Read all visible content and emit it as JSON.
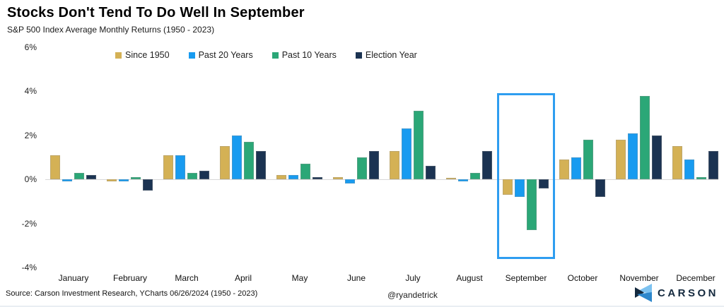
{
  "header": {
    "title": "Stocks Don't Tend To Do Well In September",
    "subtitle": "S&P 500 Index Average Monthly Returns (1950 - 2023)"
  },
  "chart_data": {
    "type": "bar",
    "categories": [
      "January",
      "February",
      "March",
      "April",
      "May",
      "June",
      "July",
      "August",
      "September",
      "October",
      "November",
      "December"
    ],
    "series": [
      {
        "name": "Since 1950",
        "color": "#d4b155",
        "values": [
          1.1,
          -0.1,
          1.1,
          1.5,
          0.2,
          0.1,
          1.3,
          0.0,
          -0.7,
          0.9,
          1.8,
          1.5
        ]
      },
      {
        "name": "Past 20 Years",
        "color": "#189bf0",
        "values": [
          -0.1,
          -0.1,
          1.1,
          2.0,
          0.2,
          -0.2,
          2.3,
          -0.1,
          -0.8,
          1.0,
          2.1,
          0.9
        ]
      },
      {
        "name": "Past 10 Years",
        "color": "#2ba777",
        "values": [
          0.3,
          0.1,
          0.3,
          1.7,
          0.7,
          1.0,
          3.1,
          0.3,
          -2.3,
          1.8,
          3.8,
          0.1
        ]
      },
      {
        "name": "Election Year",
        "color": "#1b3352",
        "values": [
          0.2,
          -0.5,
          0.4,
          1.3,
          0.1,
          1.3,
          0.6,
          1.3,
          -0.4,
          -0.8,
          2.0,
          1.3
        ]
      }
    ],
    "title": "Stocks Don't Tend To Do Well In September",
    "xlabel": "",
    "ylabel": "",
    "ylim": [
      -4,
      6
    ],
    "yticks": [
      6,
      4,
      2,
      0,
      -2,
      -4
    ],
    "ytick_labels": [
      "6%",
      "4%",
      "2%",
      "0%",
      "-2%",
      "-4%"
    ],
    "grid": false,
    "legend_position": "top",
    "highlight": {
      "category": "September",
      "index": 8,
      "color": "#2e9df0"
    }
  },
  "footer": {
    "source": "Source: Carson Investment Research, YCharts 06/26/2024 (1950 - 2023)",
    "handle": "@ryandetrick",
    "logo_text": "CARSON"
  },
  "colors": {
    "zero_line": "#d7d7d7",
    "highlight_border": "#2e9df0",
    "logo_navy": "#14293e",
    "logo_light_blue": "#7dc2f0",
    "logo_mid_blue": "#2d87cc"
  }
}
